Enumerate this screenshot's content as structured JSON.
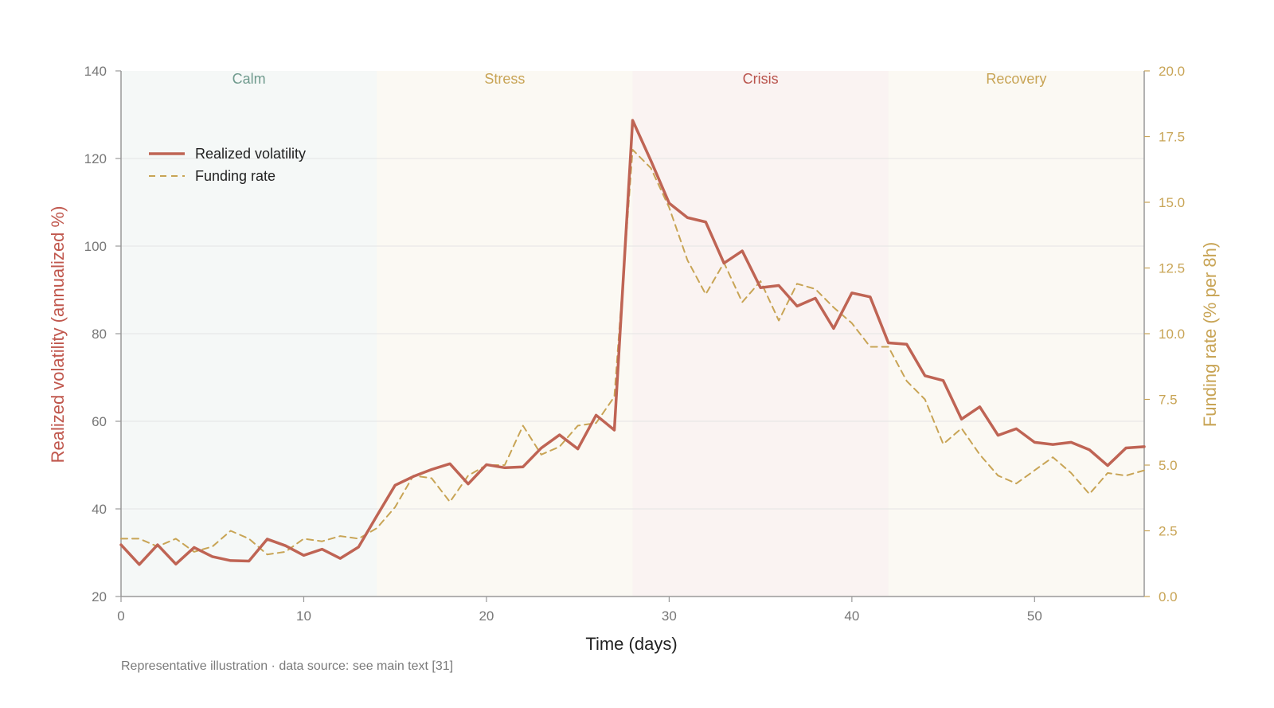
{
  "chart_data": {
    "type": "line",
    "xlabel": "Time (days)",
    "ylabel_left": "Realized volatility (annualized %)",
    "ylabel_right": "Funding rate (% per 8h)",
    "xlim": [
      0,
      56
    ],
    "ylim_left": [
      20,
      140
    ],
    "ylim_right": [
      0,
      20
    ],
    "x_ticks": [
      0,
      10,
      20,
      30,
      40,
      50
    ],
    "y_ticks_left": [
      20,
      40,
      60,
      80,
      100,
      120,
      140
    ],
    "y_ticks_right": [
      "0.0",
      "2.5",
      "5.0",
      "7.5",
      "10.0",
      "12.5",
      "15.0",
      "17.5",
      "20.0"
    ],
    "grid": "horizontal",
    "legend": "upper-left",
    "phases": [
      {
        "label": "Calm",
        "start": 0,
        "end": 14,
        "color": "#6f9a8d"
      },
      {
        "label": "Stress",
        "start": 14,
        "end": 28,
        "color": "#c8a455"
      },
      {
        "label": "Crisis",
        "start": 28,
        "end": 42,
        "color": "#b9534c"
      },
      {
        "label": "Recovery",
        "start": 42,
        "end": 56,
        "color": "#c8a455"
      }
    ],
    "x": [
      0,
      1,
      2,
      3,
      4,
      5,
      6,
      7,
      8,
      9,
      10,
      11,
      12,
      13,
      14,
      15,
      16,
      17,
      18,
      19,
      20,
      21,
      22,
      23,
      24,
      25,
      26,
      27,
      28,
      29,
      30,
      31,
      32,
      33,
      34,
      35,
      36,
      37,
      38,
      39,
      40,
      41,
      42,
      43,
      44,
      45,
      46,
      47,
      48,
      49,
      50,
      51,
      52,
      53,
      54,
      55,
      56
    ],
    "series": [
      {
        "name": "Realized volatility",
        "axis": "left",
        "style": "solid",
        "color": "#bf6454",
        "values": [
          31.8,
          27.3,
          31.8,
          27.4,
          31.2,
          29.1,
          28.2,
          28.1,
          33.1,
          31.6,
          29.4,
          30.8,
          28.7,
          31.3,
          38.4,
          45.4,
          47.4,
          49.0,
          50.3,
          45.7,
          50.1,
          49.4,
          49.6,
          53.9,
          56.9,
          53.7,
          61.4,
          58.0,
          128.7,
          119.5,
          109.8,
          106.5,
          105.5,
          96.1,
          98.9,
          90.5,
          91.0,
          86.3,
          88.1,
          81.2,
          89.3,
          88.4,
          77.9,
          77.6,
          70.4,
          69.3,
          60.5,
          63.3,
          56.8,
          58.3,
          55.2,
          54.7,
          55.2,
          53.5,
          49.9,
          53.9,
          54.2
        ]
      },
      {
        "name": "Funding rate",
        "axis": "right",
        "style": "dashed",
        "color": "#c8a455",
        "values": [
          2.2,
          2.2,
          1.9,
          2.2,
          1.7,
          1.9,
          2.5,
          2.2,
          1.6,
          1.7,
          2.2,
          2.1,
          2.3,
          2.2,
          2.6,
          3.4,
          4.6,
          4.5,
          3.6,
          4.6,
          5.0,
          5.0,
          6.5,
          5.4,
          5.7,
          6.5,
          6.6,
          7.6,
          17.0,
          16.3,
          14.8,
          12.8,
          11.5,
          12.7,
          11.2,
          12.0,
          10.5,
          11.9,
          11.7,
          11.0,
          10.4,
          9.5,
          9.5,
          8.2,
          7.5,
          5.8,
          6.4,
          5.4,
          4.6,
          4.3,
          4.8,
          5.3,
          4.7,
          3.9,
          4.7,
          4.6,
          4.8
        ]
      }
    ],
    "footnote": "Representative illustration · data source: see main text [31]"
  },
  "colors": {
    "left_axis": "#c0574d",
    "right_axis": "#c8a455",
    "axis_line": "#999999",
    "grid": "#e4e4e4",
    "tick_text": "#777777"
  }
}
